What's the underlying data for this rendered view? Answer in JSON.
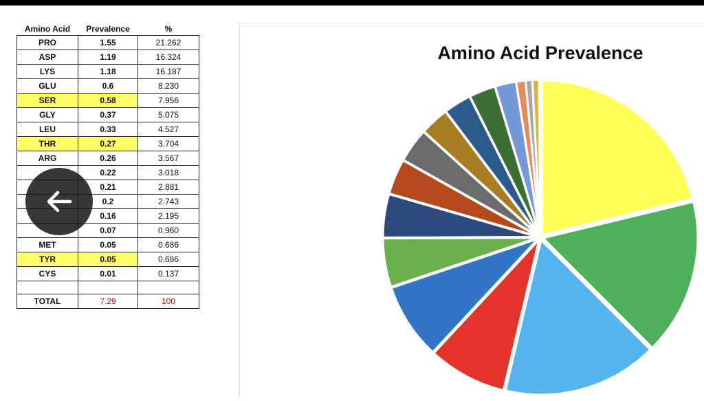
{
  "table": {
    "headers": [
      "Amino Acid",
      "Prevalence",
      "%"
    ],
    "rows": [
      {
        "name": "PRO",
        "prevalence": "1.55",
        "percent": "21.262",
        "highlight": false
      },
      {
        "name": "ASP",
        "prevalence": "1.19",
        "percent": "16.324",
        "highlight": false
      },
      {
        "name": "LYS",
        "prevalence": "1.18",
        "percent": "16.187",
        "highlight": false
      },
      {
        "name": "GLU",
        "prevalence": "0.6",
        "percent": "8.230",
        "highlight": false
      },
      {
        "name": "SER",
        "prevalence": "0.58",
        "percent": "7.956",
        "highlight": true
      },
      {
        "name": "GLY",
        "prevalence": "0.37",
        "percent": "5.075",
        "highlight": false
      },
      {
        "name": "LEU",
        "prevalence": "0.33",
        "percent": "4.527",
        "highlight": false
      },
      {
        "name": "THR",
        "prevalence": "0.27",
        "percent": "3.704",
        "highlight": true
      },
      {
        "name": "ARG",
        "prevalence": "0.26",
        "percent": "3.567",
        "highlight": false
      },
      {
        "name": "",
        "prevalence": "0.22",
        "percent": "3.018",
        "highlight": false
      },
      {
        "name": "",
        "prevalence": "0.21",
        "percent": "2.881",
        "highlight": false
      },
      {
        "name": "",
        "prevalence": "0.2",
        "percent": "2.743",
        "highlight": false
      },
      {
        "name": "",
        "prevalence": "0.16",
        "percent": "2.195",
        "highlight": false
      },
      {
        "name": "",
        "prevalence": "0.07",
        "percent": "0.960",
        "highlight": false
      },
      {
        "name": "MET",
        "prevalence": "0.05",
        "percent": "0.686",
        "highlight": false
      },
      {
        "name": "TYR",
        "prevalence": "0.05",
        "percent": "0.686",
        "highlight": true
      },
      {
        "name": "CYS",
        "prevalence": "0.01",
        "percent": "0.137",
        "highlight": false
      }
    ],
    "total": {
      "label": "TOTAL",
      "prevalence": "7.29",
      "percent": "100"
    }
  },
  "overlay": {
    "back_icon": "arrow-left-icon"
  },
  "chart_data": {
    "type": "pie",
    "title": "Amino Acid Prevalence",
    "start_angle_deg": 0,
    "direction": "clockwise",
    "slice_gap_color": "#ffffff",
    "categories": [
      "PRO",
      "ASP",
      "LYS",
      "GLU",
      "SER",
      "GLY",
      "LEU",
      "THR",
      "ARG",
      "",
      "",
      "",
      "",
      "",
      "MET",
      "TYR",
      "CYS"
    ],
    "values": [
      21.262,
      16.324,
      16.187,
      8.23,
      7.956,
      5.075,
      4.527,
      3.704,
      3.567,
      3.018,
      2.881,
      2.743,
      2.195,
      0.96,
      0.686,
      0.686,
      0.137
    ],
    "colors": [
      "#ffff55",
      "#4fb05b",
      "#55b3ef",
      "#e4332a",
      "#3275c4",
      "#6ab04c",
      "#2e4a7c",
      "#b5491c",
      "#6b6b6b",
      "#a87d22",
      "#2a5b8a",
      "#3b6e32",
      "#7598d6",
      "#e8895a",
      "#a6a6a6",
      "#d9b340",
      "#b3c6e7"
    ]
  }
}
